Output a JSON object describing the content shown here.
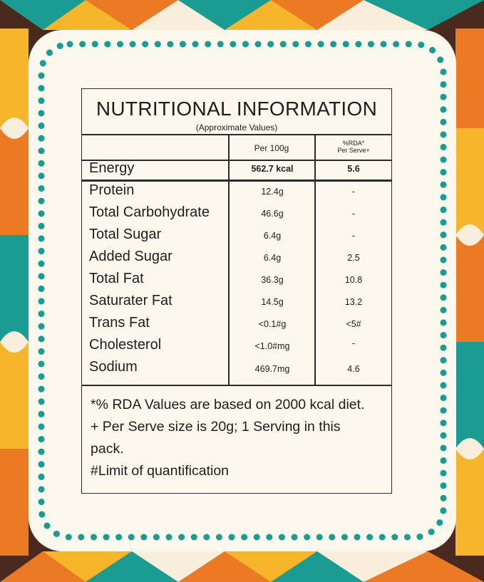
{
  "label": {
    "title": "NUTRITIONAL INFORMATION",
    "subtitle": "(Approximate Values)",
    "col_per100": "Per 100g",
    "col_rda_1": "%RDA*",
    "col_rda_2": "Per Serve+",
    "energy": {
      "name": "Energy",
      "per100": "562.7 kcal",
      "rda": "5.6"
    },
    "rows": [
      {
        "name": "Protein",
        "per100": "12.4g",
        "rda": "-"
      },
      {
        "name": "Total Carbohydrate",
        "per100": "46.6g",
        "rda": "-"
      },
      {
        "name": "Total Sugar",
        "per100": "6.4g",
        "rda": "-"
      },
      {
        "name": "Added Sugar",
        "per100": "6.4g",
        "rda": "2.5"
      },
      {
        "name": "Total Fat",
        "per100": "36.3g",
        "rda": "10.8"
      },
      {
        "name": "Saturater Fat",
        "per100": "14.5g",
        "rda": "13.2"
      },
      {
        "name": "Trans Fat",
        "per100": "<0.1#g",
        "rda": "<5#"
      },
      {
        "name": "Cholesterol",
        "per100": "<1.0#mg",
        "rda": "-"
      },
      {
        "name": "Sodium",
        "per100": "469.7mg",
        "rda": "4.6"
      }
    ],
    "notes": [
      "*% RDA Values are based on 2000 kcal diet.",
      "+ Per Serve size is 20g; 1 Serving in this",
      "pack.",
      "#Limit of quantification"
    ]
  },
  "colors": {
    "panel": "#fcf8ee",
    "teal": "#1a9c93",
    "orange": "#ec7a24",
    "yellow": "#f6b52b",
    "brown": "#4a2a1e",
    "cream": "#f8eedb"
  }
}
